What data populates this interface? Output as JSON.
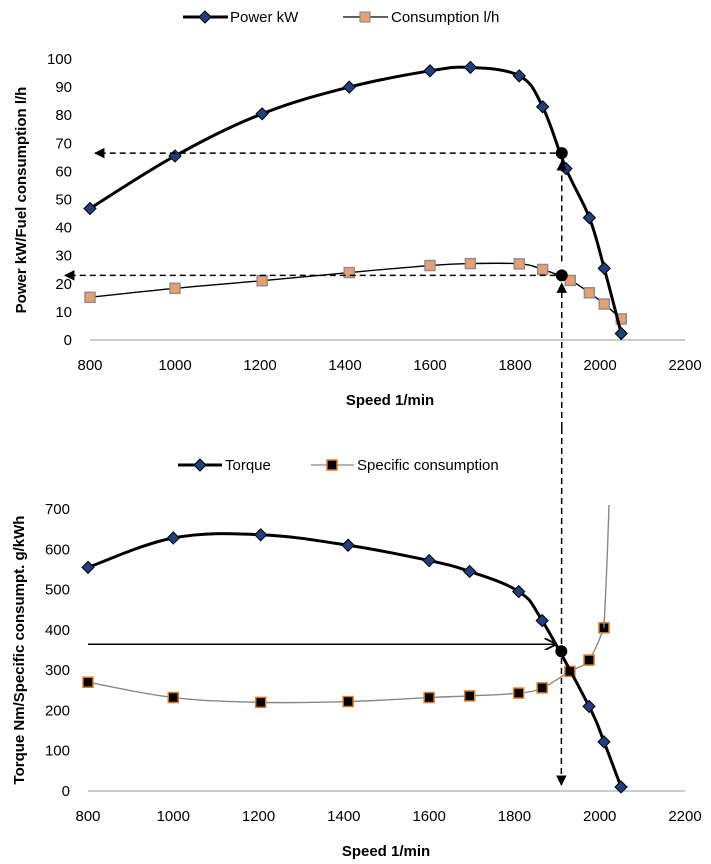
{
  "chart_data": [
    {
      "type": "line",
      "xlabel": "Speed 1/min",
      "ylabel": "Power kW/Fuel consumption l/h",
      "xlim": [
        800,
        2200
      ],
      "ylim": [
        0,
        100
      ],
      "xticks": [
        800,
        1000,
        1200,
        1400,
        1600,
        1800,
        2000,
        2200
      ],
      "yticks": [
        0,
        10,
        20,
        30,
        40,
        50,
        60,
        70,
        80,
        90,
        100
      ],
      "grid": false,
      "legend_position": "top",
      "series": [
        {
          "name": "Power kW",
          "marker": "diamond",
          "color": "#000000",
          "marker_fill": "#1f3f7f",
          "x": [
            800,
            1000,
            1205,
            1410,
            1600,
            1695,
            1810,
            1865,
            1920,
            1975,
            2010,
            2050
          ],
          "y": [
            46.8,
            65.5,
            80.5,
            90,
            95.8,
            97,
            94,
            83,
            61,
            43.5,
            25.5,
            2.3
          ]
        },
        {
          "name": "Consumption l/h",
          "marker": "square",
          "color": "#000000",
          "marker_fill": "#e8a070",
          "x": [
            800,
            1000,
            1205,
            1410,
            1600,
            1695,
            1810,
            1865,
            1930,
            1975,
            2010,
            2050
          ],
          "y": [
            15.2,
            18.4,
            21.1,
            24,
            26.5,
            27.2,
            27.1,
            25.1,
            21.2,
            16.8,
            12.8,
            7.5
          ]
        }
      ],
      "annotations": {
        "operating_speed": 1910,
        "power_at_point": 66.5,
        "consumption_at_point": 23
      }
    },
    {
      "type": "line",
      "xlabel": "Speed 1/min",
      "ylabel": "Torque Nm/Specific consumpt. g/kWh",
      "xlim": [
        800,
        2200
      ],
      "ylim": [
        0,
        700
      ],
      "xticks": [
        800,
        1000,
        1200,
        1400,
        1600,
        1800,
        2000,
        2200
      ],
      "yticks": [
        0,
        100,
        200,
        300,
        400,
        500,
        600,
        700
      ],
      "grid": false,
      "legend_position": "top",
      "series": [
        {
          "name": "Torque",
          "marker": "diamond",
          "color": "#000000",
          "marker_fill": "#1f3f7f",
          "x": [
            800,
            1000,
            1205,
            1410,
            1600,
            1695,
            1810,
            1865,
            1975,
            2010,
            2050
          ],
          "y": [
            555,
            628,
            636,
            610,
            572,
            545,
            495,
            423,
            210,
            122,
            10
          ]
        },
        {
          "name": "Specific consumption",
          "marker": "square",
          "color": "#888888",
          "marker_fill": "#000000",
          "marker_edge": "#e07b20",
          "x": [
            800,
            1000,
            1205,
            1410,
            1600,
            1695,
            1810,
            1865,
            1930,
            1975,
            2010
          ],
          "y": [
            270,
            232,
            220,
            222,
            232,
            236,
            243,
            256,
            297,
            325,
            405
          ]
        }
      ],
      "annotations": {
        "operating_speed": 1910,
        "torque_at_point": 347
      }
    }
  ],
  "colors": {
    "axis": "#999999",
    "line_main": "#000000",
    "line_secondary": "#888888",
    "diamond_fill": "#1f3f7f",
    "square_fill_top": "#e8a070",
    "square_edge_top": "#8f8f8f",
    "square_fill_bottom": "#000000",
    "square_edge_bottom": "#e07b20"
  }
}
